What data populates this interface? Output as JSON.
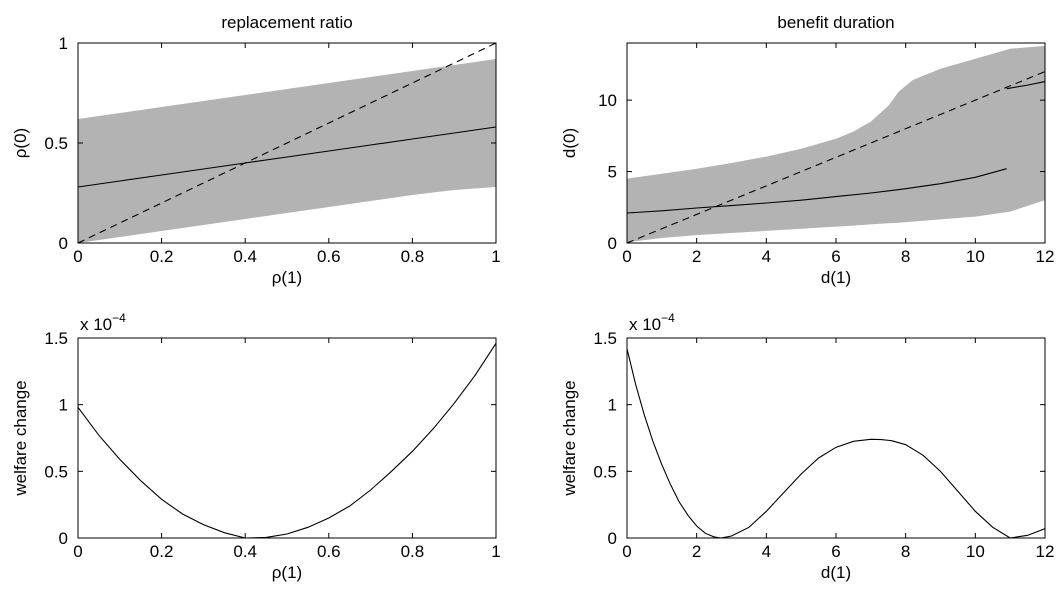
{
  "chart_data": [
    {
      "type": "area",
      "title": "replacement ratio",
      "xlabel": "ρ(1)",
      "ylabel": "ρ(0)",
      "xlim": [
        0,
        1
      ],
      "ylim": [
        0,
        1
      ],
      "xticks": [
        0,
        0.2,
        0.4,
        0.6,
        0.8,
        1
      ],
      "xtick_labels": [
        "0",
        "0.2",
        "0.4",
        "0.6",
        "0.8",
        "1"
      ],
      "yticks": [
        0,
        0.5,
        1
      ],
      "ytick_labels": [
        "0",
        "0.5",
        "1"
      ],
      "series": [
        {
          "style": "band",
          "x": [
            0,
            0.1,
            0.2,
            0.3,
            0.4,
            0.5,
            0.6,
            0.7,
            0.8,
            0.9,
            1
          ],
          "upper": [
            0.62,
            0.65,
            0.68,
            0.71,
            0.74,
            0.77,
            0.8,
            0.83,
            0.86,
            0.89,
            0.92
          ],
          "lower": [
            0,
            0.03,
            0.06,
            0.09,
            0.12,
            0.15,
            0.18,
            0.21,
            0.24,
            0.265,
            0.28
          ]
        },
        {
          "style": "solid",
          "x": [
            0,
            0.1,
            0.2,
            0.3,
            0.4,
            0.5,
            0.6,
            0.7,
            0.8,
            0.9,
            1
          ],
          "y": [
            0.28,
            0.31,
            0.34,
            0.37,
            0.4,
            0.43,
            0.46,
            0.49,
            0.52,
            0.55,
            0.58
          ]
        },
        {
          "style": "dashed",
          "x": [
            0,
            1
          ],
          "y": [
            0,
            1
          ]
        }
      ]
    },
    {
      "type": "area",
      "title": "benefit duration",
      "xlabel": "d(1)",
      "ylabel": "d(0)",
      "xlim": [
        0,
        12
      ],
      "ylim": [
        0,
        14
      ],
      "xticks": [
        0,
        2,
        4,
        6,
        8,
        10,
        12
      ],
      "xtick_labels": [
        "0",
        "2",
        "4",
        "6",
        "8",
        "10",
        "12"
      ],
      "yticks": [
        0,
        5,
        10
      ],
      "ytick_labels": [
        "0",
        "5",
        "10"
      ],
      "series": [
        {
          "style": "band",
          "x": [
            0,
            1,
            2,
            3,
            4,
            5,
            6,
            6.5,
            7,
            7.5,
            7.8,
            8.2,
            9,
            10,
            11,
            12
          ],
          "upper": [
            4.5,
            4.85,
            5.2,
            5.6,
            6.05,
            6.6,
            7.3,
            7.8,
            8.5,
            9.6,
            10.6,
            11.4,
            12.2,
            12.9,
            13.6,
            13.8
          ],
          "lower": [
            0.05,
            0.35,
            0.55,
            0.7,
            0.85,
            1.0,
            1.15,
            1.22,
            1.3,
            1.38,
            1.42,
            1.5,
            1.65,
            1.85,
            2.2,
            3.0
          ]
        },
        {
          "style": "solid",
          "x": [
            0,
            1,
            2,
            3,
            4,
            5,
            6,
            7,
            8,
            9,
            10,
            10.9
          ],
          "y": [
            2.1,
            2.25,
            2.45,
            2.62,
            2.8,
            3.0,
            3.25,
            3.5,
            3.8,
            4.15,
            4.6,
            5.2
          ]
        },
        {
          "style": "solid",
          "x": [
            10.9,
            11.5,
            12
          ],
          "y": [
            10.8,
            11.05,
            11.3
          ]
        },
        {
          "style": "dashed",
          "x": [
            0,
            12
          ],
          "y": [
            0,
            12
          ]
        }
      ]
    },
    {
      "type": "line",
      "xlabel": "ρ(1)",
      "ylabel": "welfare change",
      "exponent_label": "x 10",
      "exponent_power": "−4",
      "xlim": [
        0,
        1
      ],
      "ylim": [
        0,
        1.5
      ],
      "xticks": [
        0,
        0.2,
        0.4,
        0.6,
        0.8,
        1
      ],
      "xtick_labels": [
        "0",
        "0.2",
        "0.4",
        "0.6",
        "0.8",
        "1"
      ],
      "yticks": [
        0,
        0.5,
        1,
        1.5
      ],
      "ytick_labels": [
        "0",
        "0.5",
        "1",
        "1.5"
      ],
      "series": [
        {
          "style": "solid",
          "x": [
            0,
            0.05,
            0.1,
            0.15,
            0.2,
            0.25,
            0.3,
            0.35,
            0.4,
            0.45,
            0.5,
            0.55,
            0.6,
            0.65,
            0.7,
            0.75,
            0.8,
            0.85,
            0.9,
            0.95,
            1
          ],
          "y": [
            0.98,
            0.77,
            0.59,
            0.43,
            0.29,
            0.18,
            0.1,
            0.04,
            0.0,
            0.004,
            0.03,
            0.08,
            0.15,
            0.24,
            0.36,
            0.5,
            0.65,
            0.82,
            1.01,
            1.22,
            1.46
          ]
        }
      ]
    },
    {
      "type": "line",
      "xlabel": "d(1)",
      "ylabel": "welfare change",
      "exponent_label": "x 10",
      "exponent_power": "−4",
      "xlim": [
        0,
        12
      ],
      "ylim": [
        0,
        1.5
      ],
      "xticks": [
        0,
        2,
        4,
        6,
        8,
        10,
        12
      ],
      "xtick_labels": [
        "0",
        "2",
        "4",
        "6",
        "8",
        "10",
        "12"
      ],
      "yticks": [
        0,
        0.5,
        1,
        1.5
      ],
      "ytick_labels": [
        "0",
        "0.5",
        "1",
        "1.5"
      ],
      "series": [
        {
          "style": "solid",
          "x": [
            0,
            0.25,
            0.5,
            0.75,
            1,
            1.25,
            1.5,
            1.75,
            2,
            2.25,
            2.5,
            2.7,
            3,
            3.5,
            4,
            4.5,
            5,
            5.5,
            6,
            6.5,
            7,
            7.3,
            7.6,
            8,
            8.5,
            9,
            9.5,
            10,
            10.5,
            11,
            11.5,
            12
          ],
          "y": [
            1.42,
            1.15,
            0.92,
            0.72,
            0.55,
            0.4,
            0.27,
            0.17,
            0.09,
            0.035,
            0.008,
            0.0,
            0.015,
            0.08,
            0.2,
            0.34,
            0.48,
            0.6,
            0.68,
            0.725,
            0.74,
            0.738,
            0.73,
            0.7,
            0.62,
            0.5,
            0.35,
            0.2,
            0.08,
            0.0,
            0.02,
            0.07
          ]
        }
      ]
    }
  ]
}
